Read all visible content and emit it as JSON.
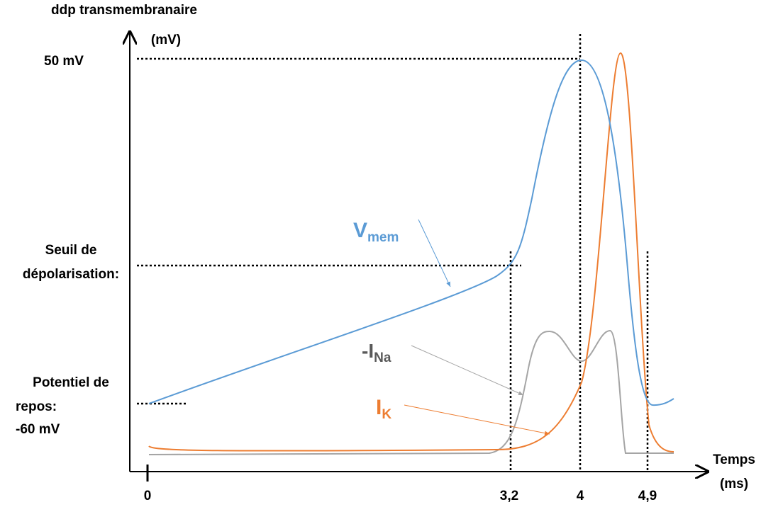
{
  "y_axis": {
    "title": "ddp transmembranaire",
    "unit": "(mV)"
  },
  "x_axis": {
    "title": "Temps",
    "unit": "(ms)"
  },
  "y_labels": {
    "peak": "50 mV",
    "threshold": [
      "Seuil de",
      "dépolarisation:"
    ],
    "rest": [
      "Potentiel de",
      "repos:",
      "-60 mV"
    ]
  },
  "x_ticks": [
    "0",
    "3,2",
    "4",
    "4,9"
  ],
  "curves": [
    {
      "label": "V",
      "subscript": "mem"
    },
    {
      "label": "-I",
      "subscript": "Na"
    },
    {
      "label": "I",
      "subscript": "K"
    }
  ]
}
